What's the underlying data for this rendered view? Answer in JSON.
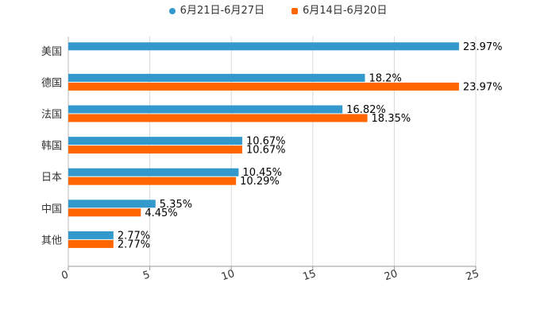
{
  "chart_data": {
    "type": "bar",
    "orientation": "horizontal",
    "categories": [
      "美国",
      "德国",
      "法国",
      "韩国",
      "日本",
      "中国",
      "其他"
    ],
    "series": [
      {
        "name": "6月21日-6月27日",
        "color": "#3399cc",
        "marker": "circle",
        "values": [
          23.97,
          18.2,
          16.82,
          10.67,
          10.45,
          5.35,
          2.77
        ],
        "labels": [
          "23.97%",
          "18.2%",
          "16.82%",
          "10.67%",
          "10.45%",
          "5.35%",
          "2.77%"
        ]
      },
      {
        "name": "6月14日-6月20日",
        "color": "#ff6600",
        "marker": "square",
        "values": [
          null,
          23.97,
          18.35,
          10.67,
          10.29,
          4.45,
          2.77
        ],
        "labels": [
          null,
          "23.97%",
          "18.35%",
          "10.67%",
          "10.29%",
          "4.45%",
          "2.77%"
        ]
      }
    ],
    "xlim": [
      0,
      25
    ],
    "xticks": [
      0,
      5,
      10,
      15,
      20,
      25
    ],
    "xtick_labels": [
      "0",
      "5",
      "10",
      "15",
      "20",
      "25"
    ],
    "grid": true,
    "legend_position": "top-center",
    "title": "",
    "xlabel": "",
    "ylabel": ""
  }
}
